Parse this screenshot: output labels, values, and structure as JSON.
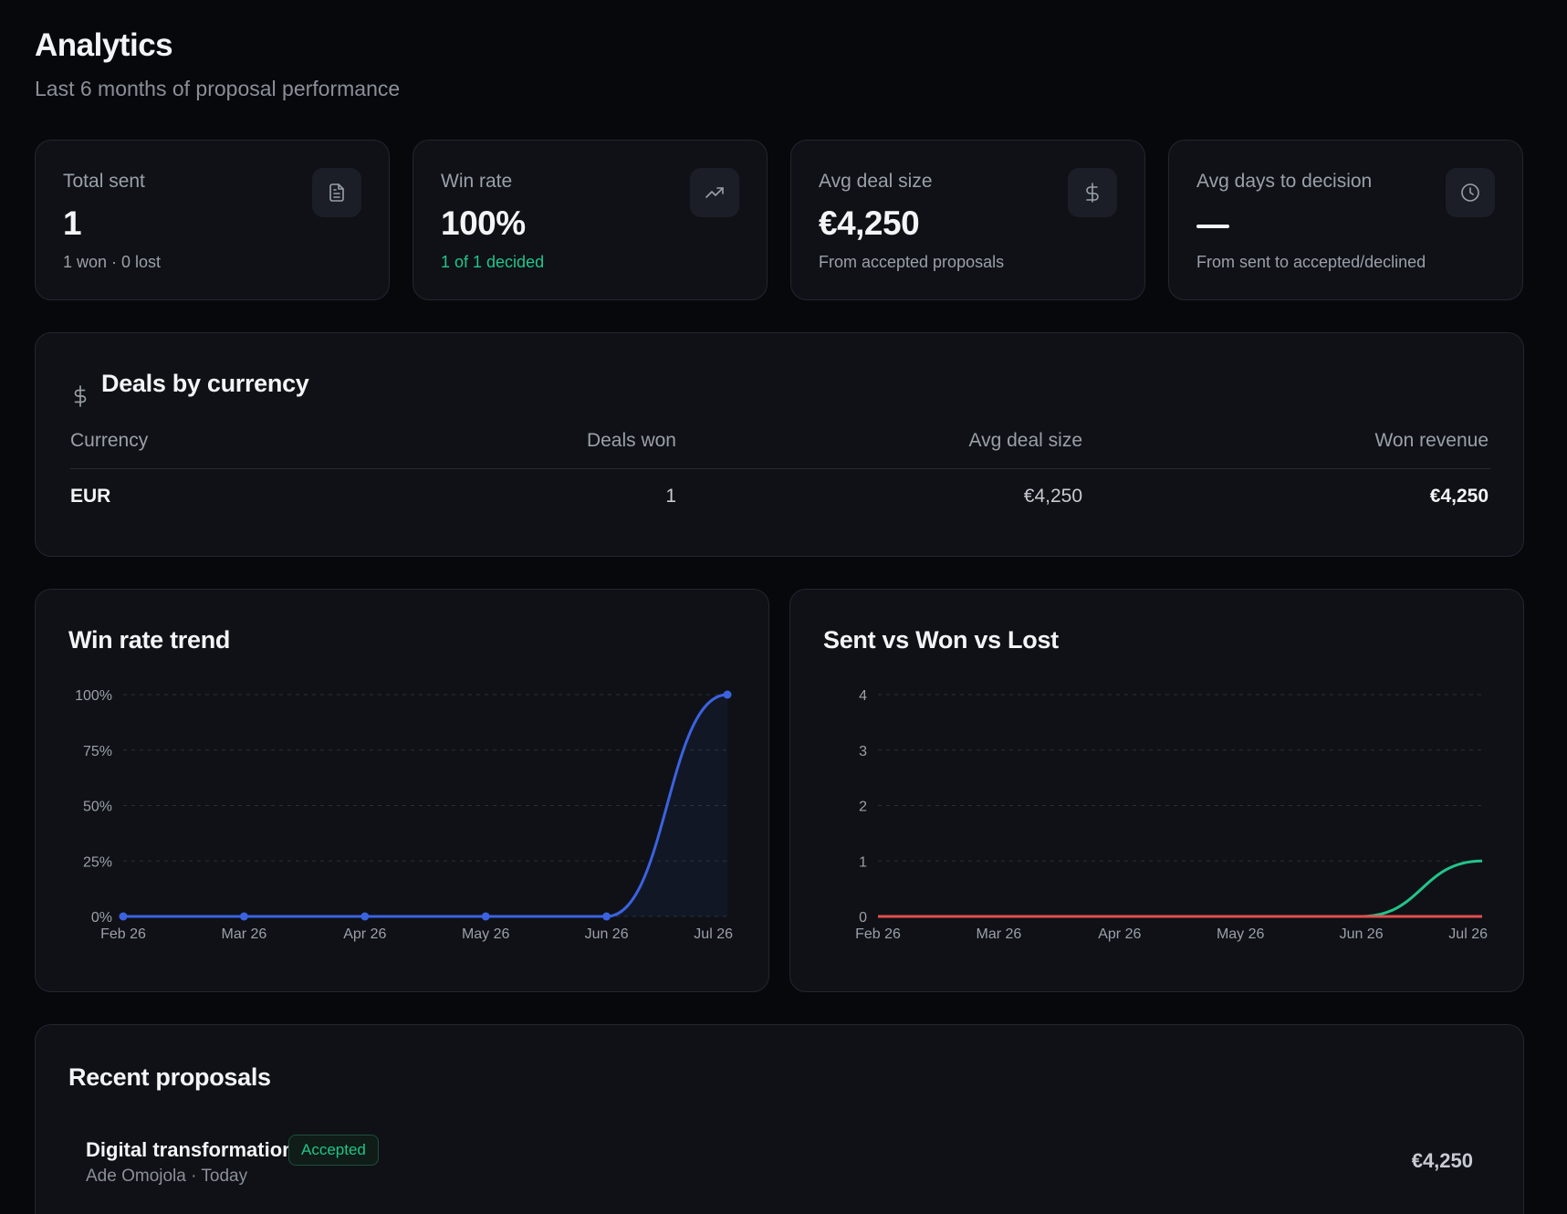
{
  "header": {
    "title": "Analytics",
    "subtitle": "Last 6 months of proposal performance"
  },
  "stats": [
    {
      "label": "Total sent",
      "value": "1",
      "sub": "1 won · 0 lost",
      "icon": "document-icon"
    },
    {
      "label": "Win rate",
      "value": "100%",
      "sub": "1 of 1 decided",
      "icon": "trending-up-icon"
    },
    {
      "label": "Avg deal size",
      "value": "€4,250",
      "sub": "From accepted proposals",
      "icon": "dollar-icon"
    },
    {
      "label": "Avg days to decision",
      "value": "",
      "sub": "From sent to accepted/declined",
      "icon": "clock-icon"
    }
  ],
  "currency": {
    "title": "Deals by currency",
    "icon": "dollar-icon",
    "columns": [
      "Currency",
      "Deals won",
      "Avg deal size",
      "Won revenue"
    ],
    "rows": [
      [
        "EUR",
        "1",
        "€4,250",
        "€4,250"
      ]
    ]
  },
  "colors": {
    "background": "#07080c",
    "card": "#0f1116",
    "accent_blue": "#3b63e0",
    "won_green": "#22c48a",
    "lost_red": "#e0504f"
  },
  "chart_data": [
    {
      "type": "area",
      "title": "Win rate trend",
      "categories": [
        "Feb 26",
        "Mar 26",
        "Apr 26",
        "May 26",
        "Jun 26",
        "Jul 26"
      ],
      "series": [
        {
          "values": [
            0,
            0,
            0,
            0,
            0,
            100
          ]
        }
      ],
      "ylim": [
        0,
        100
      ],
      "yticks": [
        "0%",
        "25%",
        "50%",
        "75%",
        "100%"
      ],
      "grid": true
    },
    {
      "type": "line",
      "title": "Sent vs Won vs Lost",
      "categories": [
        "Feb 26",
        "Mar 26",
        "Apr 26",
        "May 26",
        "Jun 26",
        "Jul 26"
      ],
      "series": [
        {
          "values": [
            0,
            0,
            0,
            0,
            0,
            1
          ],
          "color": "#22c48a"
        },
        {
          "values": [
            0,
            0,
            0,
            0,
            0,
            0
          ],
          "color": "#e0504f"
        }
      ],
      "ylim": [
        0,
        4
      ],
      "yticks": [
        "0",
        "1",
        "2",
        "3",
        "4"
      ],
      "grid": true
    }
  ],
  "recent": {
    "title": "Recent proposals",
    "items": [
      {
        "name": "Digital transformation",
        "status": "Accepted",
        "meta": "Ade Omojola · Today",
        "amount": "€4,250"
      }
    ]
  }
}
